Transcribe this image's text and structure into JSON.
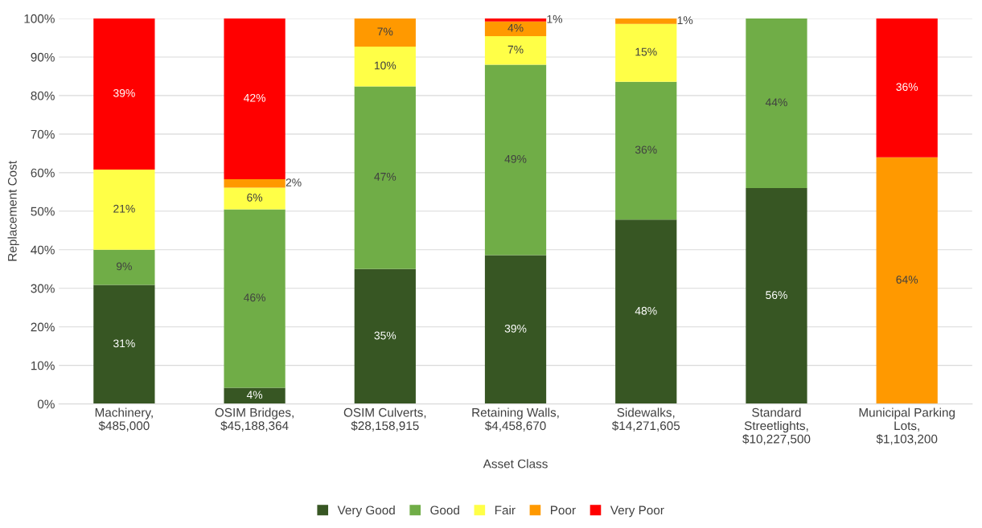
{
  "chart_data": {
    "type": "bar",
    "stacked": true,
    "xlabel": "Asset Class",
    "ylabel": "Replacement Cost",
    "categories": [
      "Machinery,\n$485,000",
      "OSIM Bridges,\n$45,188,364",
      "OSIM Culverts,\n$28,158,915",
      "Retaining Walls,\n$4,458,670",
      "Sidewalks,\n$14,271,605",
      "Standard\nStreetlights,\n$10,227,500",
      "Municipal Parking\nLots,\n$1,103,200"
    ],
    "series": [
      {
        "name": "Very Good",
        "color": "#375623",
        "values": [
          30.9,
          4.2,
          35.0,
          38.6,
          47.8,
          56,
          null
        ],
        "value_labels": [
          "31%",
          "4%",
          "35%",
          "39%",
          "48%",
          "56%",
          null
        ]
      },
      {
        "name": "Good",
        "color": "#70ad47",
        "values": [
          9.1,
          46.3,
          47.4,
          49.4,
          35.8,
          44,
          null
        ],
        "value_labels": [
          "9%",
          "46%",
          "47%",
          "49%",
          "36%",
          "44%",
          null
        ]
      },
      {
        "name": "Fair",
        "color": "#ffff47",
        "values": [
          20.8,
          5.6,
          10.3,
          7.4,
          15.0,
          null,
          null
        ],
        "value_labels": [
          "21%",
          "6%",
          "10%",
          "7%",
          "15%",
          null,
          null
        ]
      },
      {
        "name": "Poor",
        "color": "#ff9900",
        "values": [
          null,
          2.2,
          7.3,
          3.8,
          1.4,
          null,
          64
        ],
        "value_labels": [
          null,
          "2%",
          "7%",
          "4%",
          "1%",
          null,
          "64%"
        ]
      },
      {
        "name": "Very Poor",
        "color": "#ff0000",
        "values": [
          39.2,
          41.7,
          null,
          0.8,
          null,
          null,
          36
        ],
        "value_labels": [
          "39%",
          "42%",
          null,
          "1%",
          null,
          null,
          "36%"
        ]
      }
    ],
    "ylim": [
      0,
      100
    ],
    "yticks": [
      {
        "value": 0,
        "label": "0%"
      },
      {
        "value": 10,
        "label": "10%"
      },
      {
        "value": 20,
        "label": "20%"
      },
      {
        "value": 30,
        "label": "30%"
      },
      {
        "value": 40,
        "label": "40%"
      },
      {
        "value": 50,
        "label": "50%"
      },
      {
        "value": 60,
        "label": "60%"
      },
      {
        "value": 70,
        "label": "70%"
      },
      {
        "value": 80,
        "label": "80%"
      },
      {
        "value": 90,
        "label": "90%"
      },
      {
        "value": 100,
        "label": "100%"
      }
    ],
    "grid": "y",
    "legend": "bottom"
  }
}
